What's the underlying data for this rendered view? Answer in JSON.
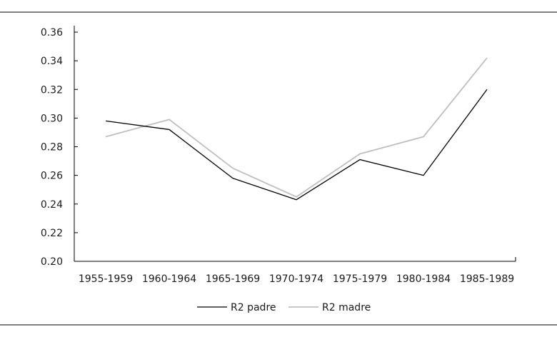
{
  "chart_data": {
    "type": "line",
    "categories": [
      "1955-1959",
      "1960-1964",
      "1965-1969",
      "1970-1974",
      "1975-1979",
      "1980-1984",
      "1985-1989"
    ],
    "series": [
      {
        "name": "R2 padre",
        "color": "#000000",
        "values": [
          0.298,
          0.292,
          0.258,
          0.243,
          0.271,
          0.26,
          0.32
        ]
      },
      {
        "name": "R2 madre",
        "color": "#bfbfbf",
        "values": [
          0.287,
          0.299,
          0.265,
          0.245,
          0.275,
          0.287,
          0.342
        ]
      }
    ],
    "yticks": [
      "0.20",
      "0.22",
      "0.24",
      "0.26",
      "0.28",
      "0.30",
      "0.32",
      "0.34",
      "0.36"
    ],
    "ylim": [
      0.2,
      0.36
    ],
    "title": "",
    "xlabel": "",
    "ylabel": "",
    "grid": false,
    "legend_position": "bottom-center"
  }
}
